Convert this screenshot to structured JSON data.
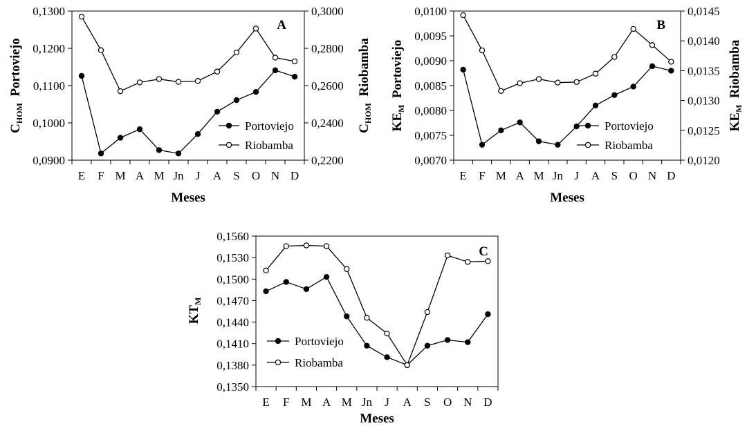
{
  "chart_data": [
    {
      "type": "line",
      "panel_letter": "A",
      "categories": [
        "E",
        "F",
        "M",
        "A",
        "M",
        "Jn",
        "J",
        "A",
        "S",
        "O",
        "N",
        "D"
      ],
      "xlabel": "Meses",
      "ylabel_left": {
        "main": "C",
        "sub": "HOM",
        "rest": "  Portoviejo"
      },
      "ylabel_right": {
        "main": "C",
        "sub": "HOM",
        "rest": "  Riobamba"
      },
      "ylim_left": [
        0.09,
        0.13
      ],
      "ylim_right": [
        0.22,
        0.3
      ],
      "yticks_left": [
        "0,0900",
        "0,1000",
        "0,1100",
        "0,1200",
        "0,1300"
      ],
      "yticks_right": [
        "0,2200",
        "0,2400",
        "0,2600",
        "0,2800",
        "0,3000"
      ],
      "legend_position": "bottom-right",
      "series": [
        {
          "name": "Portoviejo",
          "axis": "left",
          "marker": "filled",
          "values": [
            0.1126,
            0.0918,
            0.096,
            0.0983,
            0.0927,
            0.0918,
            0.097,
            0.103,
            0.1061,
            0.1083,
            0.1141,
            0.1124
          ]
        },
        {
          "name": "Riobamba",
          "axis": "right",
          "marker": "open",
          "values": [
            0.297,
            0.279,
            0.257,
            0.2617,
            0.2635,
            0.262,
            0.2625,
            0.2675,
            0.2778,
            0.2906,
            0.275,
            0.273
          ]
        }
      ]
    },
    {
      "type": "line",
      "panel_letter": "B",
      "categories": [
        "E",
        "F",
        "M",
        "A",
        "M",
        "Jn",
        "J",
        "A",
        "S",
        "O",
        "N",
        "D"
      ],
      "xlabel": "Meses",
      "ylabel_left": {
        "main": "KE",
        "sub": "M",
        "rest": "  Portoviejo"
      },
      "ylabel_right": {
        "main": "KE",
        "sub": "M",
        "rest": "  Riobamba"
      },
      "ylim_left": [
        0.007,
        0.01
      ],
      "ylim_right": [
        0.012,
        0.0145
      ],
      "yticks_left": [
        "0,0070",
        "0,0075",
        "0,0080",
        "0,0085",
        "0,0090",
        "0,0095",
        "0,0100"
      ],
      "yticks_right": [
        "0,0120",
        "0,0125",
        "0,0130",
        "0,0135",
        "0,0140",
        "0,0145"
      ],
      "legend_position": "bottom-right",
      "series": [
        {
          "name": "Portoviejo",
          "axis": "left",
          "marker": "filled",
          "values": [
            0.00882,
            0.00731,
            0.0076,
            0.00776,
            0.00738,
            0.00731,
            0.00768,
            0.0081,
            0.00831,
            0.00848,
            0.00889,
            0.0088
          ]
        },
        {
          "name": "Riobamba",
          "axis": "right",
          "marker": "open",
          "values": [
            0.01443,
            0.01384,
            0.01316,
            0.01329,
            0.01336,
            0.0133,
            0.01331,
            0.01345,
            0.01373,
            0.0142,
            0.01393,
            0.01365
          ]
        }
      ]
    },
    {
      "type": "line",
      "panel_letter": "C",
      "categories": [
        "E",
        "F",
        "M",
        "A",
        "M",
        "Jn",
        "J",
        "A",
        "S",
        "O",
        "N",
        "D"
      ],
      "xlabel": "Meses",
      "ylabel_left": {
        "main": "KT",
        "sub": "M",
        "rest": ""
      },
      "ylim_left": [
        0.135,
        0.156
      ],
      "yticks_left": [
        "0,1350",
        "0,1380",
        "0,1410",
        "0,1440",
        "0,1470",
        "0,1500",
        "0,1530",
        "0,1560"
      ],
      "legend_position": "bottom-left",
      "series": [
        {
          "name": "Portoviejo",
          "axis": "left",
          "marker": "filled",
          "values": [
            0.1483,
            0.1496,
            0.1486,
            0.1503,
            0.1448,
            0.1407,
            0.1391,
            0.138,
            0.1407,
            0.1415,
            0.1412,
            0.1451
          ]
        },
        {
          "name": "Riobamba",
          "axis": "left",
          "marker": "open",
          "values": [
            0.1512,
            0.1546,
            0.1547,
            0.1546,
            0.1514,
            0.1446,
            0.1424,
            0.138,
            0.1454,
            0.1533,
            0.1524,
            0.1525
          ]
        }
      ]
    }
  ]
}
